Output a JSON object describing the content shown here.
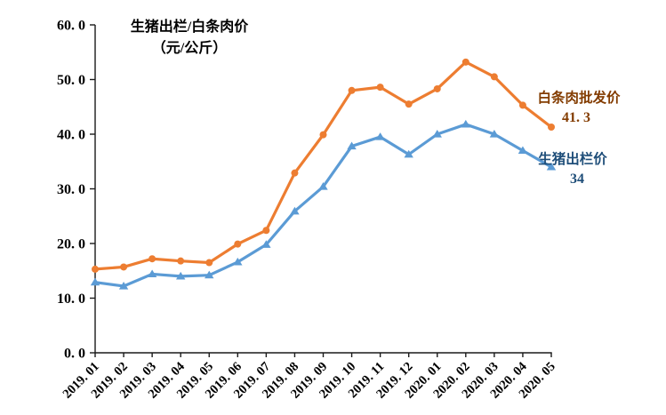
{
  "chart_data": {
    "type": "line",
    "title": "生猪出栏/白条肉价",
    "title_line2": "（元/公斤）",
    "unit": "元/公斤",
    "xlabel": "",
    "ylabel": "",
    "ylim": [
      0,
      60
    ],
    "y_tick_step": 10,
    "y_tick_labels": [
      "0.0",
      "10.0",
      "20.0",
      "30.0",
      "40.0",
      "50.0",
      "60.0"
    ],
    "grid": false,
    "legend_position": "end-of-line-annotations",
    "categories": [
      "2019.01",
      "2019.02",
      "2019.03",
      "2019.04",
      "2019.05",
      "2019.06",
      "2019.07",
      "2019.08",
      "2019.09",
      "2019.10",
      "2019.11",
      "2019.12",
      "2020.01",
      "2020.02",
      "2020.03",
      "2020.04",
      "2020.05"
    ],
    "series": [
      {
        "name": "白条肉批发价",
        "marker": "circle",
        "color": "#ED7D31",
        "label_color": "#833C00",
        "end_label": "41.3",
        "values": [
          15.3,
          15.7,
          17.2,
          16.8,
          16.5,
          19.9,
          22.4,
          32.9,
          39.9,
          48.0,
          48.6,
          45.5,
          48.3,
          53.2,
          50.5,
          45.3,
          41.3
        ]
      },
      {
        "name": "生猪出栏价",
        "marker": "triangle",
        "color": "#5B9BD5",
        "label_color": "#1F4E79",
        "end_label": "34",
        "values": [
          12.9,
          12.2,
          14.4,
          14.0,
          14.2,
          16.6,
          19.8,
          25.9,
          30.4,
          37.8,
          39.5,
          36.3,
          40.0,
          41.8,
          40.0,
          37.0,
          34.0
        ]
      }
    ]
  }
}
